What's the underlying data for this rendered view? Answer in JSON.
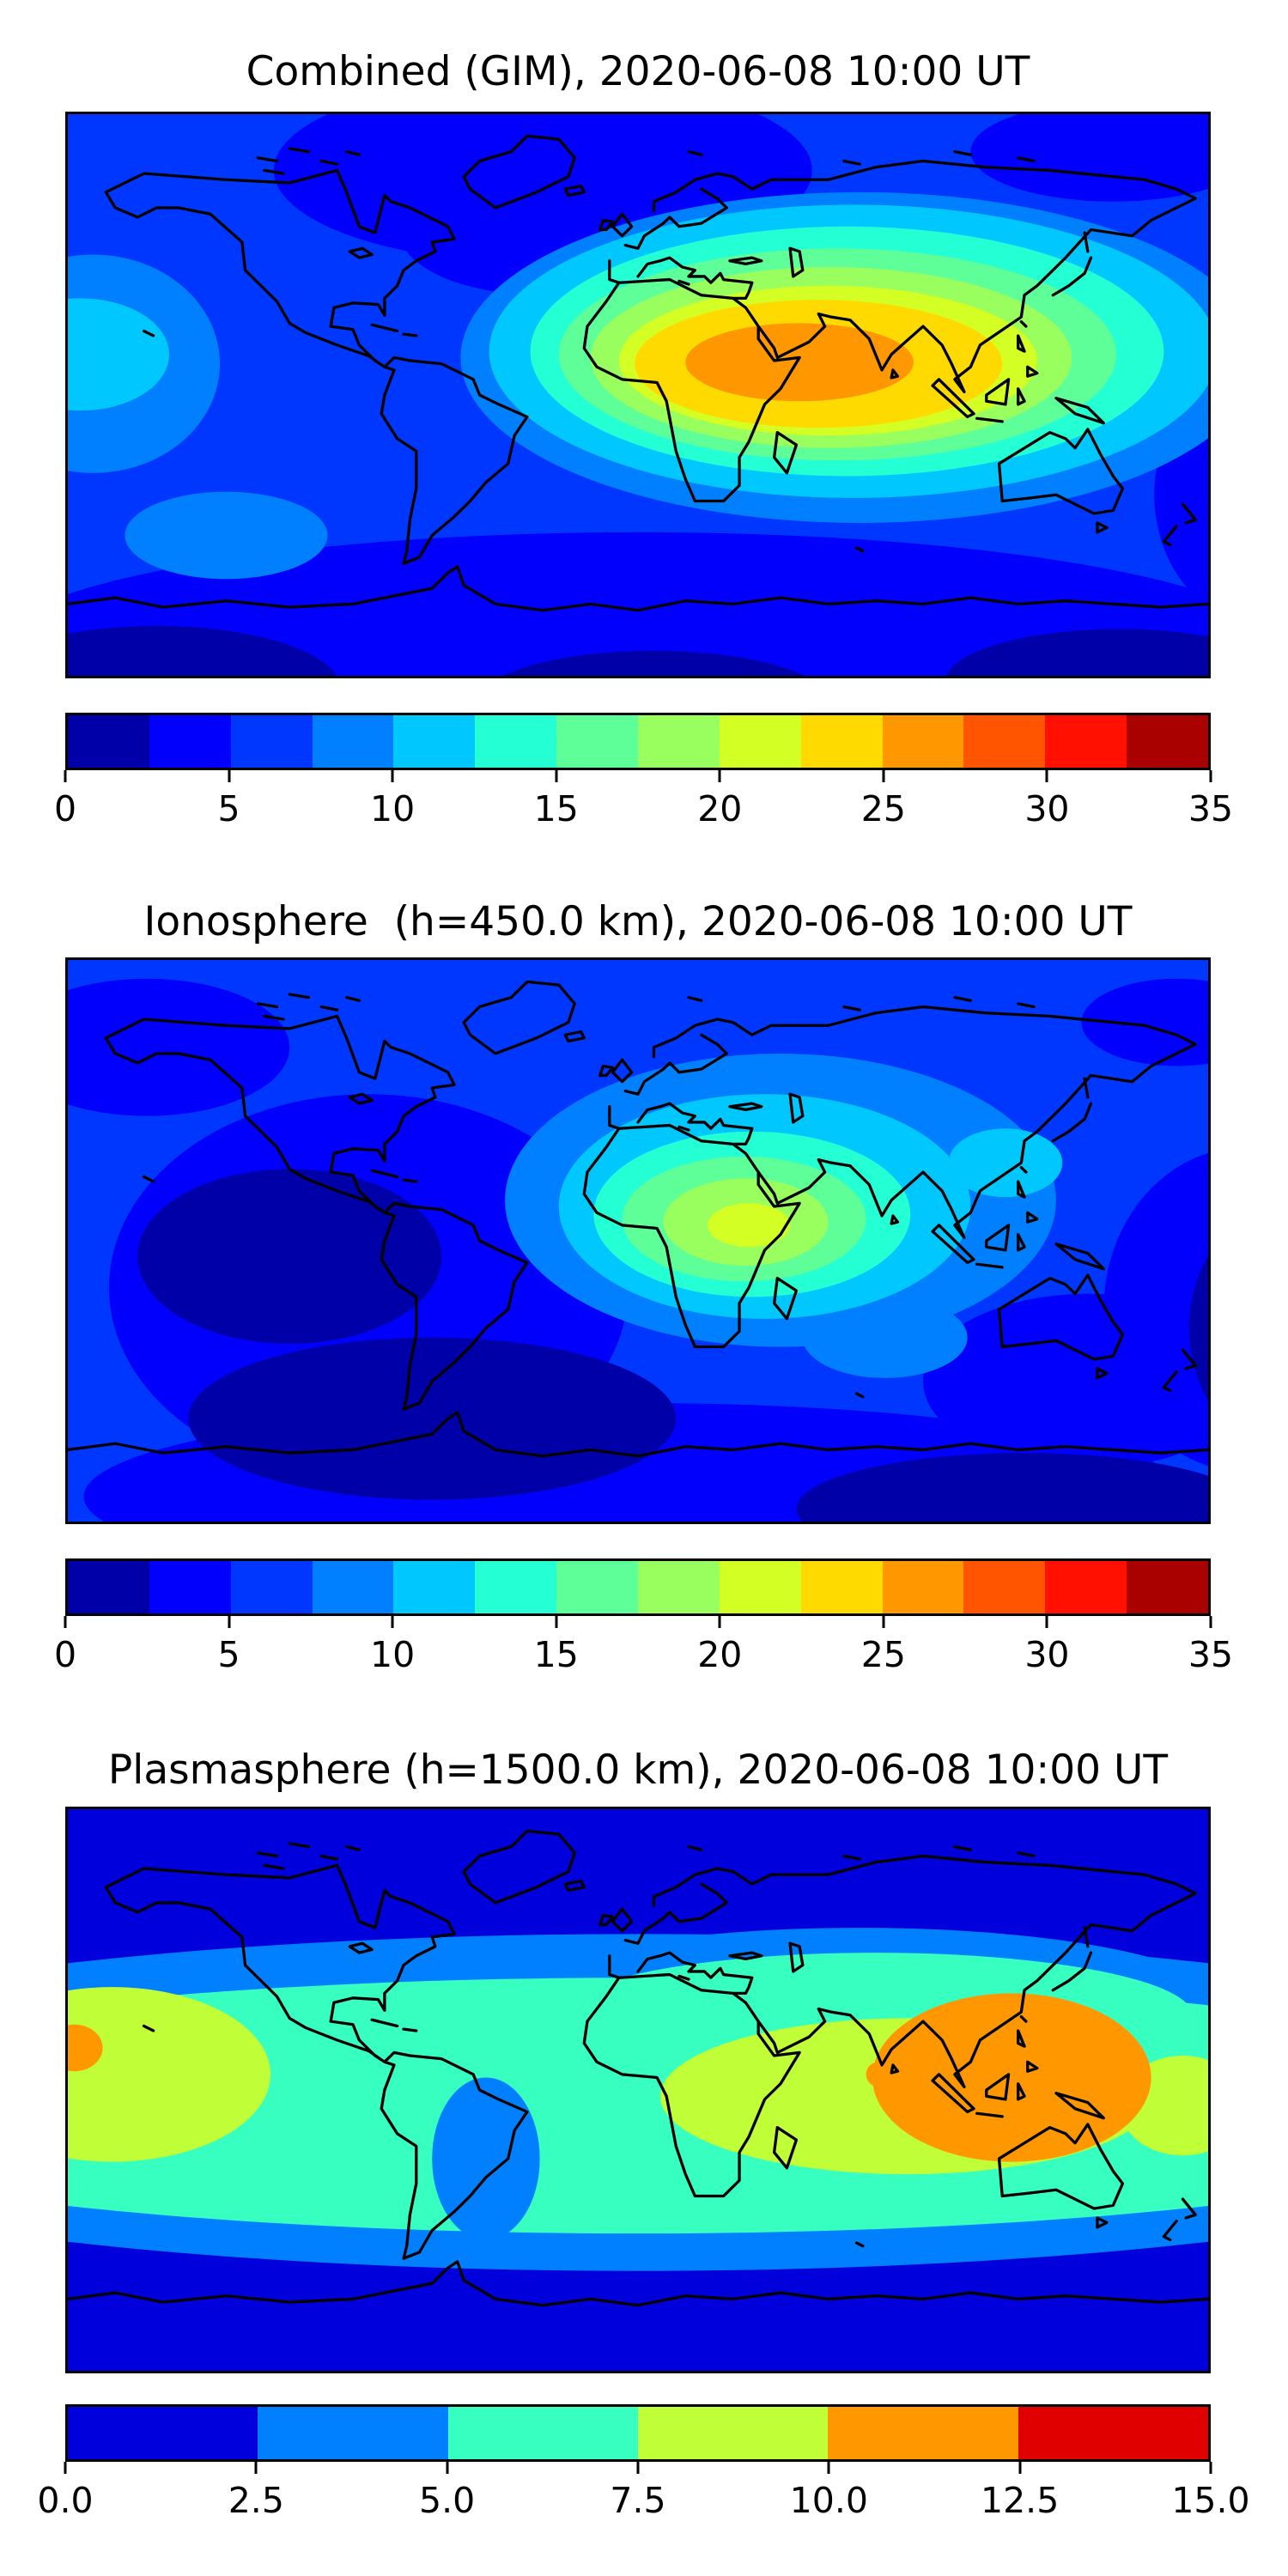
{
  "figure": {
    "background": "#ffffff",
    "text_color": "#000000",
    "colormaps": {
      "jet14": [
        "#0000A9",
        "#0000FC",
        "#0037FF",
        "#0080FF",
        "#00C8FF",
        "#24FFD4",
        "#5EFF99",
        "#99FF5E",
        "#D4FF24",
        "#FFDA00",
        "#FF9700",
        "#FF5400",
        "#FF1000",
        "#A90000"
      ],
      "jet6": [
        "#0000DC",
        "#0080FF",
        "#37FFC0",
        "#C0FF37",
        "#FF9700",
        "#E00000"
      ]
    },
    "panels": [
      {
        "id": "combined",
        "title": "Combined (GIM), 2020-06-08 10:00 UT",
        "colorbar": {
          "min": 0,
          "max": 35,
          "segments": 14,
          "colormap_ref": "jet14",
          "tick_labels": [
            "0",
            "5",
            "10",
            "15",
            "20",
            "25",
            "30",
            "35"
          ]
        }
      },
      {
        "id": "ionosphere",
        "title": "Ionosphere  (h=450.0 km), 2020-06-08 10:00 UT",
        "colorbar": {
          "min": 0,
          "max": 35,
          "segments": 14,
          "colormap_ref": "jet14",
          "tick_labels": [
            "0",
            "5",
            "10",
            "15",
            "20",
            "25",
            "30",
            "35"
          ]
        }
      },
      {
        "id": "plasmasphere",
        "title": "Plasmasphere (h=1500.0 km), 2020-06-08 10:00 UT",
        "colorbar": {
          "min": 0,
          "max": 15,
          "segments": 6,
          "colormap_ref": "jet6",
          "tick_labels": [
            "0.0",
            "2.5",
            "5.0",
            "7.5",
            "10.0",
            "12.5",
            "15.0"
          ]
        }
      }
    ]
  },
  "chart_data": [
    {
      "type": "heatmap",
      "chart_style": "filled contour world map (equirectangular), coastlines overlaid",
      "title": "Combined (GIM), 2020-06-08 10:00 UT",
      "x_extent_lon_deg": [
        -180,
        180
      ],
      "y_extent_lat_deg": [
        -90,
        90
      ],
      "colormap": "jet",
      "contour_levels": [
        0,
        2.5,
        5,
        7.5,
        10,
        12.5,
        15,
        17.5,
        20,
        22.5,
        25,
        27.5,
        30,
        32.5,
        35
      ],
      "colorbar_ticks": [
        0,
        5,
        10,
        15,
        20,
        25,
        30,
        35
      ],
      "value_range_shown": [
        0,
        27.5
      ],
      "features": [
        {
          "label": "peak band 25-27.5 (orange core)",
          "approx_center_lonlat": [
            50,
            10
          ],
          "approx_lon_span": [
            15,
            87
          ],
          "approx_lat_span": [
            -2,
            23
          ]
        },
        {
          "label": "broad enhancement >10 over N Africa / Middle East / S & SE Asia",
          "approx_lon_span": [
            -15,
            135
          ],
          "approx_lat_span": [
            -16,
            38
          ]
        },
        {
          "label": "secondary enhancement 10-12.5 central Pacific near west edge",
          "approx_center_lonlat": [
            -176,
            13
          ]
        },
        {
          "label": "low 2.5-5 over N America / N Atlantic arctic sector",
          "approx_lon_span": [
            -140,
            20
          ],
          "approx_lat_span": [
            45,
            85
          ]
        },
        {
          "label": "minimum <2.5 at southern high latitudes",
          "approx_lat_span": [
            -90,
            -55
          ]
        }
      ]
    },
    {
      "type": "heatmap",
      "chart_style": "filled contour world map (equirectangular), coastlines overlaid",
      "title": "Ionosphere  (h=450.0 km), 2020-06-08 10:00 UT",
      "x_extent_lon_deg": [
        -180,
        180
      ],
      "y_extent_lat_deg": [
        -90,
        90
      ],
      "colormap": "jet",
      "contour_levels": [
        0,
        2.5,
        5,
        7.5,
        10,
        12.5,
        15,
        17.5,
        20,
        22.5,
        25,
        27.5,
        30,
        32.5,
        35
      ],
      "colorbar_ticks": [
        0,
        5,
        10,
        15,
        20,
        25,
        30,
        35
      ],
      "value_range_shown": [
        0,
        22.5
      ],
      "features": [
        {
          "label": "peak band 20-22.5 (yellow-green core)",
          "approx_center_lonlat": [
            35,
            5
          ],
          "approx_lon_span": [
            15,
            49
          ],
          "approx_lat_span": [
            -3,
            12
          ]
        },
        {
          "label": "enhancement >10 over NE Africa / Arabia / India",
          "approx_lon_span": [
            -14,
            86
          ],
          "approx_lat_span": [
            -18,
            35
          ]
        },
        {
          "label": "moderate 7.5-10 patch in S Indian Ocean",
          "approx_center_lonlat": [
            78,
            -31
          ]
        },
        {
          "label": "minimum <2.5 over SE Pacific / S Atlantic and E Pacific edge",
          "approx_lon_span": [
            -160,
            -20
          ],
          "approx_lat_span": [
            -75,
            5
          ]
        },
        {
          "label": "low 2.5-5 along southern high latitudes and NE Pacific corner"
        }
      ]
    },
    {
      "type": "heatmap",
      "chart_style": "filled contour world map (equirectangular), coastlines overlaid",
      "title": "Plasmasphere (h=1500.0 km), 2020-06-08 10:00 UT",
      "x_extent_lon_deg": [
        -180,
        180
      ],
      "y_extent_lat_deg": [
        -90,
        90
      ],
      "colormap": "jet",
      "contour_levels": [
        0,
        2.5,
        5,
        7.5,
        10,
        12.5,
        15
      ],
      "colorbar_ticks": [
        0,
        2.5,
        5,
        7.5,
        10,
        12.5,
        15
      ],
      "value_range_shown": [
        0,
        12.5
      ],
      "features": [
        {
          "label": "equatorial belt 5-10 spanning all longitudes",
          "approx_lat_span": [
            -35,
            30
          ]
        },
        {
          "label": "maximum 10-12.5 over SE Asia / W Pacific",
          "approx_center_lonlat": [
            118,
            4
          ],
          "approx_lon_span": [
            74,
            162
          ],
          "approx_lat_span": [
            -23,
            31
          ]
        },
        {
          "label": "small 10-12.5 spot at far west edge",
          "approx_center_lonlat": [
            -178,
            13
          ]
        },
        {
          "label": "tiny 10-12.5 spot near 76E on the equator",
          "approx_center_lonlat": [
            76,
            5
          ]
        },
        {
          "label": "yellow-green 7.5-10 band E/central Pacific",
          "approx_center_lonlat": [
            -166,
            5
          ]
        },
        {
          "label": "polar minima <2.5 poleward of about ±50 latitude"
        }
      ]
    }
  ]
}
